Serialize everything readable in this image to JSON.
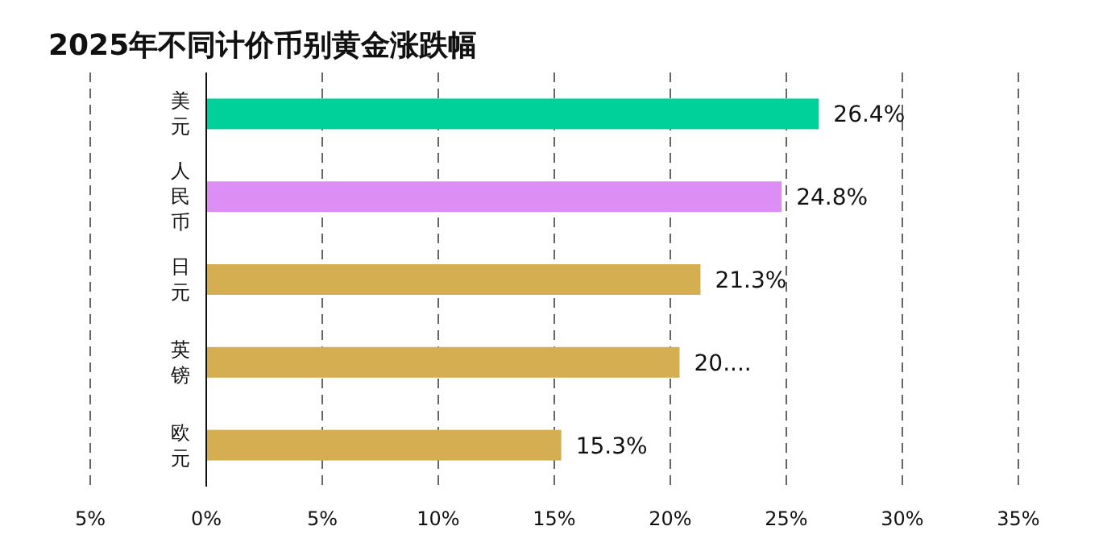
{
  "chart_data": {
    "type": "bar",
    "orientation": "horizontal",
    "title": "2025年不同计价币别黄金涨跌幅",
    "categories": [
      "美元",
      "人民币",
      "日元",
      "英镑",
      "欧元"
    ],
    "values": [
      26.4,
      24.8,
      21.3,
      20.4,
      15.3
    ],
    "colors": [
      "#00d19a",
      "#dd8ef5",
      "#d6ae52",
      "#d6ae52",
      "#d6ae52"
    ],
    "value_labels": [
      "26.4%",
      "24.8%",
      "21.3%",
      "20....",
      "15.3%"
    ],
    "xlim": [
      -5,
      35
    ],
    "xticks": [
      {
        "value": -5,
        "label": "5%"
      },
      {
        "value": 0,
        "label": "0%"
      },
      {
        "value": 5,
        "label": "5%"
      },
      {
        "value": 10,
        "label": "10%"
      },
      {
        "value": 15,
        "label": "15%"
      },
      {
        "value": 20,
        "label": "20%"
      },
      {
        "value": 25,
        "label": "25%"
      },
      {
        "value": 30,
        "label": "30%"
      },
      {
        "value": 35,
        "label": "35%"
      }
    ],
    "grid": "x"
  }
}
